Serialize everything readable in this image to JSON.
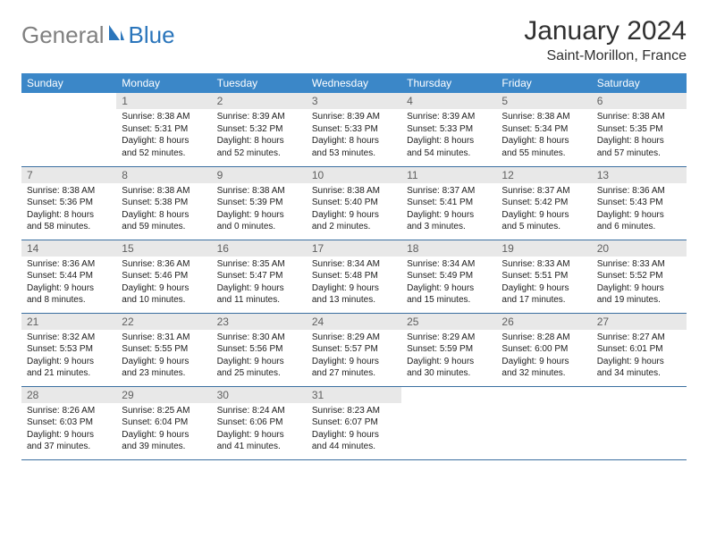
{
  "logo": {
    "part1": "General",
    "part2": "Blue"
  },
  "title": "January 2024",
  "location": "Saint-Morillon, France",
  "colors": {
    "header_bg": "#3b87c8",
    "header_fg": "#ffffff",
    "daynum_bg": "#e8e8e8",
    "daynum_fg": "#606060",
    "row_border": "#3b6fa0",
    "logo_gray": "#808080",
    "logo_blue": "#2a75bb"
  },
  "weekdays": [
    "Sunday",
    "Monday",
    "Tuesday",
    "Wednesday",
    "Thursday",
    "Friday",
    "Saturday"
  ],
  "weeks": [
    [
      null,
      {
        "n": "1",
        "sr": "Sunrise: 8:38 AM",
        "ss": "Sunset: 5:31 PM",
        "d1": "Daylight: 8 hours",
        "d2": "and 52 minutes."
      },
      {
        "n": "2",
        "sr": "Sunrise: 8:39 AM",
        "ss": "Sunset: 5:32 PM",
        "d1": "Daylight: 8 hours",
        "d2": "and 52 minutes."
      },
      {
        "n": "3",
        "sr": "Sunrise: 8:39 AM",
        "ss": "Sunset: 5:33 PM",
        "d1": "Daylight: 8 hours",
        "d2": "and 53 minutes."
      },
      {
        "n": "4",
        "sr": "Sunrise: 8:39 AM",
        "ss": "Sunset: 5:33 PM",
        "d1": "Daylight: 8 hours",
        "d2": "and 54 minutes."
      },
      {
        "n": "5",
        "sr": "Sunrise: 8:38 AM",
        "ss": "Sunset: 5:34 PM",
        "d1": "Daylight: 8 hours",
        "d2": "and 55 minutes."
      },
      {
        "n": "6",
        "sr": "Sunrise: 8:38 AM",
        "ss": "Sunset: 5:35 PM",
        "d1": "Daylight: 8 hours",
        "d2": "and 57 minutes."
      }
    ],
    [
      {
        "n": "7",
        "sr": "Sunrise: 8:38 AM",
        "ss": "Sunset: 5:36 PM",
        "d1": "Daylight: 8 hours",
        "d2": "and 58 minutes."
      },
      {
        "n": "8",
        "sr": "Sunrise: 8:38 AM",
        "ss": "Sunset: 5:38 PM",
        "d1": "Daylight: 8 hours",
        "d2": "and 59 minutes."
      },
      {
        "n": "9",
        "sr": "Sunrise: 8:38 AM",
        "ss": "Sunset: 5:39 PM",
        "d1": "Daylight: 9 hours",
        "d2": "and 0 minutes."
      },
      {
        "n": "10",
        "sr": "Sunrise: 8:38 AM",
        "ss": "Sunset: 5:40 PM",
        "d1": "Daylight: 9 hours",
        "d2": "and 2 minutes."
      },
      {
        "n": "11",
        "sr": "Sunrise: 8:37 AM",
        "ss": "Sunset: 5:41 PM",
        "d1": "Daylight: 9 hours",
        "d2": "and 3 minutes."
      },
      {
        "n": "12",
        "sr": "Sunrise: 8:37 AM",
        "ss": "Sunset: 5:42 PM",
        "d1": "Daylight: 9 hours",
        "d2": "and 5 minutes."
      },
      {
        "n": "13",
        "sr": "Sunrise: 8:36 AM",
        "ss": "Sunset: 5:43 PM",
        "d1": "Daylight: 9 hours",
        "d2": "and 6 minutes."
      }
    ],
    [
      {
        "n": "14",
        "sr": "Sunrise: 8:36 AM",
        "ss": "Sunset: 5:44 PM",
        "d1": "Daylight: 9 hours",
        "d2": "and 8 minutes."
      },
      {
        "n": "15",
        "sr": "Sunrise: 8:36 AM",
        "ss": "Sunset: 5:46 PM",
        "d1": "Daylight: 9 hours",
        "d2": "and 10 minutes."
      },
      {
        "n": "16",
        "sr": "Sunrise: 8:35 AM",
        "ss": "Sunset: 5:47 PM",
        "d1": "Daylight: 9 hours",
        "d2": "and 11 minutes."
      },
      {
        "n": "17",
        "sr": "Sunrise: 8:34 AM",
        "ss": "Sunset: 5:48 PM",
        "d1": "Daylight: 9 hours",
        "d2": "and 13 minutes."
      },
      {
        "n": "18",
        "sr": "Sunrise: 8:34 AM",
        "ss": "Sunset: 5:49 PM",
        "d1": "Daylight: 9 hours",
        "d2": "and 15 minutes."
      },
      {
        "n": "19",
        "sr": "Sunrise: 8:33 AM",
        "ss": "Sunset: 5:51 PM",
        "d1": "Daylight: 9 hours",
        "d2": "and 17 minutes."
      },
      {
        "n": "20",
        "sr": "Sunrise: 8:33 AM",
        "ss": "Sunset: 5:52 PM",
        "d1": "Daylight: 9 hours",
        "d2": "and 19 minutes."
      }
    ],
    [
      {
        "n": "21",
        "sr": "Sunrise: 8:32 AM",
        "ss": "Sunset: 5:53 PM",
        "d1": "Daylight: 9 hours",
        "d2": "and 21 minutes."
      },
      {
        "n": "22",
        "sr": "Sunrise: 8:31 AM",
        "ss": "Sunset: 5:55 PM",
        "d1": "Daylight: 9 hours",
        "d2": "and 23 minutes."
      },
      {
        "n": "23",
        "sr": "Sunrise: 8:30 AM",
        "ss": "Sunset: 5:56 PM",
        "d1": "Daylight: 9 hours",
        "d2": "and 25 minutes."
      },
      {
        "n": "24",
        "sr": "Sunrise: 8:29 AM",
        "ss": "Sunset: 5:57 PM",
        "d1": "Daylight: 9 hours",
        "d2": "and 27 minutes."
      },
      {
        "n": "25",
        "sr": "Sunrise: 8:29 AM",
        "ss": "Sunset: 5:59 PM",
        "d1": "Daylight: 9 hours",
        "d2": "and 30 minutes."
      },
      {
        "n": "26",
        "sr": "Sunrise: 8:28 AM",
        "ss": "Sunset: 6:00 PM",
        "d1": "Daylight: 9 hours",
        "d2": "and 32 minutes."
      },
      {
        "n": "27",
        "sr": "Sunrise: 8:27 AM",
        "ss": "Sunset: 6:01 PM",
        "d1": "Daylight: 9 hours",
        "d2": "and 34 minutes."
      }
    ],
    [
      {
        "n": "28",
        "sr": "Sunrise: 8:26 AM",
        "ss": "Sunset: 6:03 PM",
        "d1": "Daylight: 9 hours",
        "d2": "and 37 minutes."
      },
      {
        "n": "29",
        "sr": "Sunrise: 8:25 AM",
        "ss": "Sunset: 6:04 PM",
        "d1": "Daylight: 9 hours",
        "d2": "and 39 minutes."
      },
      {
        "n": "30",
        "sr": "Sunrise: 8:24 AM",
        "ss": "Sunset: 6:06 PM",
        "d1": "Daylight: 9 hours",
        "d2": "and 41 minutes."
      },
      {
        "n": "31",
        "sr": "Sunrise: 8:23 AM",
        "ss": "Sunset: 6:07 PM",
        "d1": "Daylight: 9 hours",
        "d2": "and 44 minutes."
      },
      null,
      null,
      null
    ]
  ]
}
